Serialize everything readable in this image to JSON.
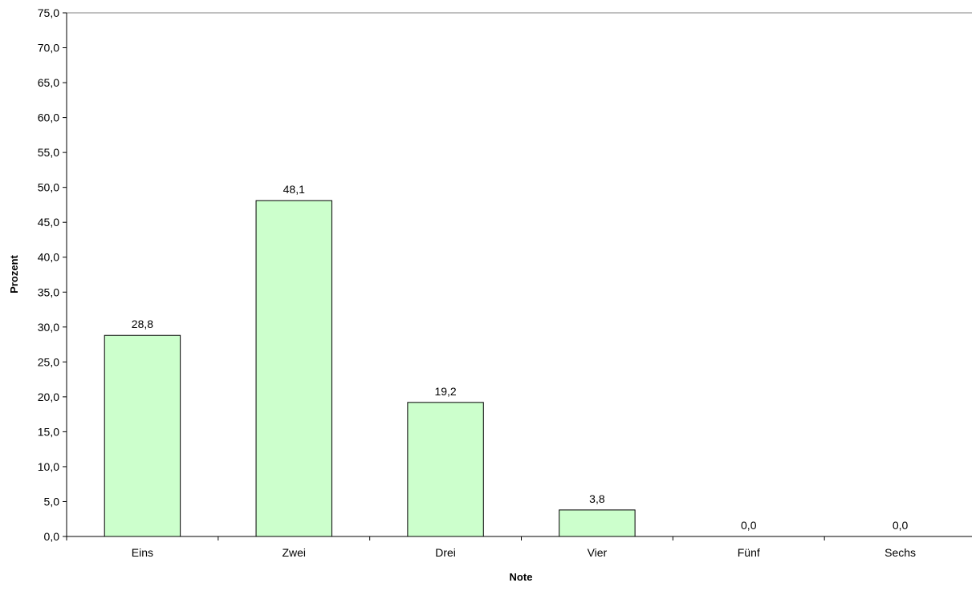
{
  "chart_data": {
    "type": "bar",
    "title": "",
    "xlabel": "Note",
    "ylabel": "Prozent",
    "categories": [
      "Eins",
      "Zwei",
      "Drei",
      "Vier",
      "Fünf",
      "Sechs"
    ],
    "values": [
      28.8,
      48.1,
      19.2,
      3.8,
      0.0,
      0.0
    ],
    "data_labels": [
      "28,8",
      "48,1",
      "19,2",
      "3,8",
      "0,0",
      "0,0"
    ],
    "ylim": [
      0,
      75
    ],
    "ytick_step": 5,
    "ytick_labels": [
      "0,0",
      "5,0",
      "10,0",
      "15,0",
      "20,0",
      "25,0",
      "30,0",
      "35,0",
      "40,0",
      "45,0",
      "50,0",
      "55,0",
      "60,0",
      "65,0",
      "70,0",
      "75,0"
    ],
    "grid": false,
    "legend": "none",
    "bar_color": "#ccffcc",
    "bar_edge_color": "#000000"
  }
}
